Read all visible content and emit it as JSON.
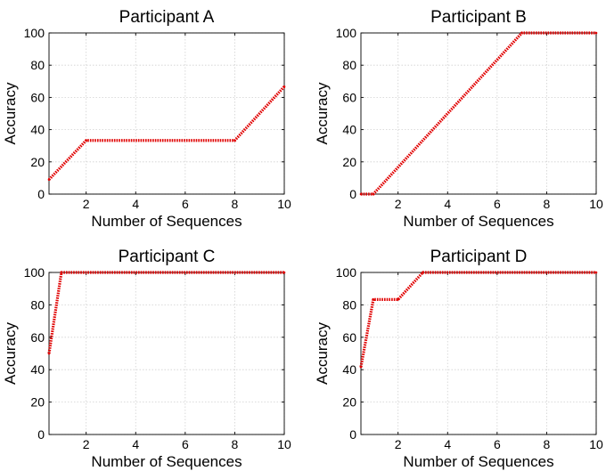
{
  "chart_data": [
    {
      "type": "line",
      "title": "Participant A",
      "xlabel": "Number of Sequences",
      "ylabel": "Accuracy",
      "xlim": [
        0.5,
        10
      ],
      "ylim": [
        0,
        100
      ],
      "xticks": [
        2,
        4,
        6,
        8,
        10
      ],
      "yticks": [
        0,
        20,
        40,
        60,
        80,
        100
      ],
      "grid": true,
      "series": [
        {
          "name": "accuracy",
          "color": "#e00000",
          "x": [
            0.5,
            2,
            8,
            10
          ],
          "y": [
            9,
            33.3,
            33.3,
            66.7
          ]
        }
      ]
    },
    {
      "type": "line",
      "title": "Participant B",
      "xlabel": "Number of Sequences",
      "ylabel": "Accuracy",
      "xlim": [
        0.5,
        10
      ],
      "ylim": [
        0,
        100
      ],
      "xticks": [
        2,
        4,
        6,
        8,
        10
      ],
      "yticks": [
        0,
        20,
        40,
        60,
        80,
        100
      ],
      "grid": true,
      "series": [
        {
          "name": "accuracy",
          "color": "#e00000",
          "x": [
            0.5,
            1,
            7,
            10
          ],
          "y": [
            0,
            0,
            100,
            100
          ]
        }
      ]
    },
    {
      "type": "line",
      "title": "Participant C",
      "xlabel": "Number of Sequences",
      "ylabel": "Accuracy",
      "xlim": [
        0.5,
        10
      ],
      "ylim": [
        0,
        100
      ],
      "xticks": [
        2,
        4,
        6,
        8,
        10
      ],
      "yticks": [
        0,
        20,
        40,
        60,
        80,
        100
      ],
      "grid": true,
      "series": [
        {
          "name": "accuracy",
          "color": "#e00000",
          "x": [
            0.5,
            1,
            10
          ],
          "y": [
            50,
            100,
            100
          ]
        }
      ]
    },
    {
      "type": "line",
      "title": "Participant D",
      "xlabel": "Number of Sequences",
      "ylabel": "Accuracy",
      "xlim": [
        0.5,
        10
      ],
      "ylim": [
        0,
        100
      ],
      "xticks": [
        2,
        4,
        6,
        8,
        10
      ],
      "yticks": [
        0,
        20,
        40,
        60,
        80,
        100
      ],
      "grid": true,
      "series": [
        {
          "name": "accuracy",
          "color": "#e00000",
          "x": [
            0.5,
            1,
            2,
            3,
            10
          ],
          "y": [
            41.7,
            83.3,
            83.3,
            100,
            100
          ]
        }
      ]
    }
  ]
}
